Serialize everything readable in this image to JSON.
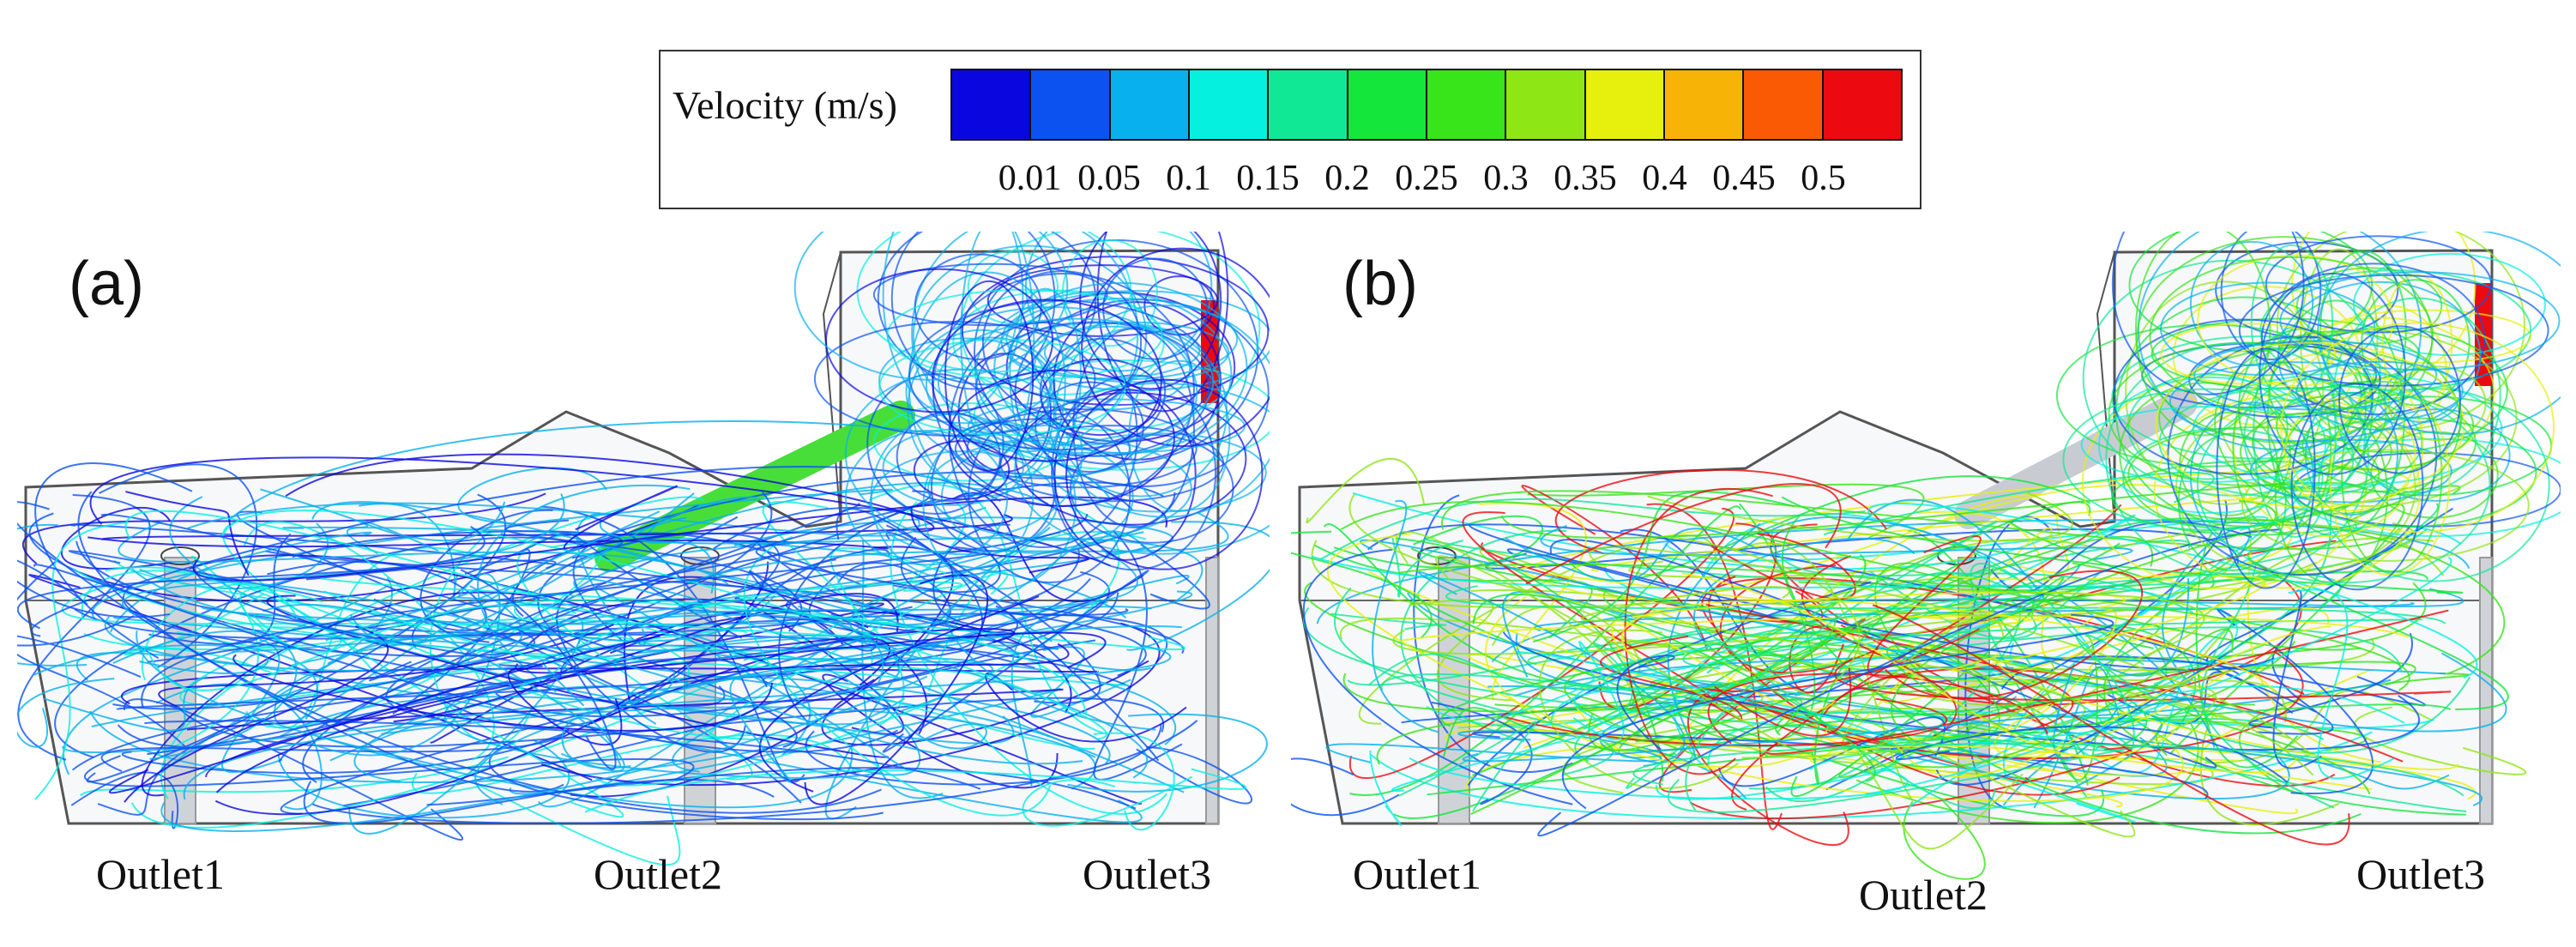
{
  "legend": {
    "title": "Velocity (m/s)",
    "colors": [
      "#0a06e0",
      "#0b52f0",
      "#08b0ee",
      "#06f0e0",
      "#10e896",
      "#14e63c",
      "#38e41a",
      "#8ee614",
      "#e6f00c",
      "#f8b406",
      "#fa5a04",
      "#ec0a10"
    ],
    "ticks": [
      "0.01",
      "0.05",
      "0.1",
      "0.15",
      "0.2",
      "0.25",
      "0.3",
      "0.35",
      "0.4",
      "0.45",
      "0.5"
    ]
  },
  "panels": [
    {
      "label": "(a)",
      "outlets": [
        "Outlet1",
        "Outlet2",
        "Outlet3"
      ]
    },
    {
      "label": "(b)",
      "outlets": [
        "Outlet1",
        "Outlet2",
        "Outlet3"
      ]
    }
  ]
}
